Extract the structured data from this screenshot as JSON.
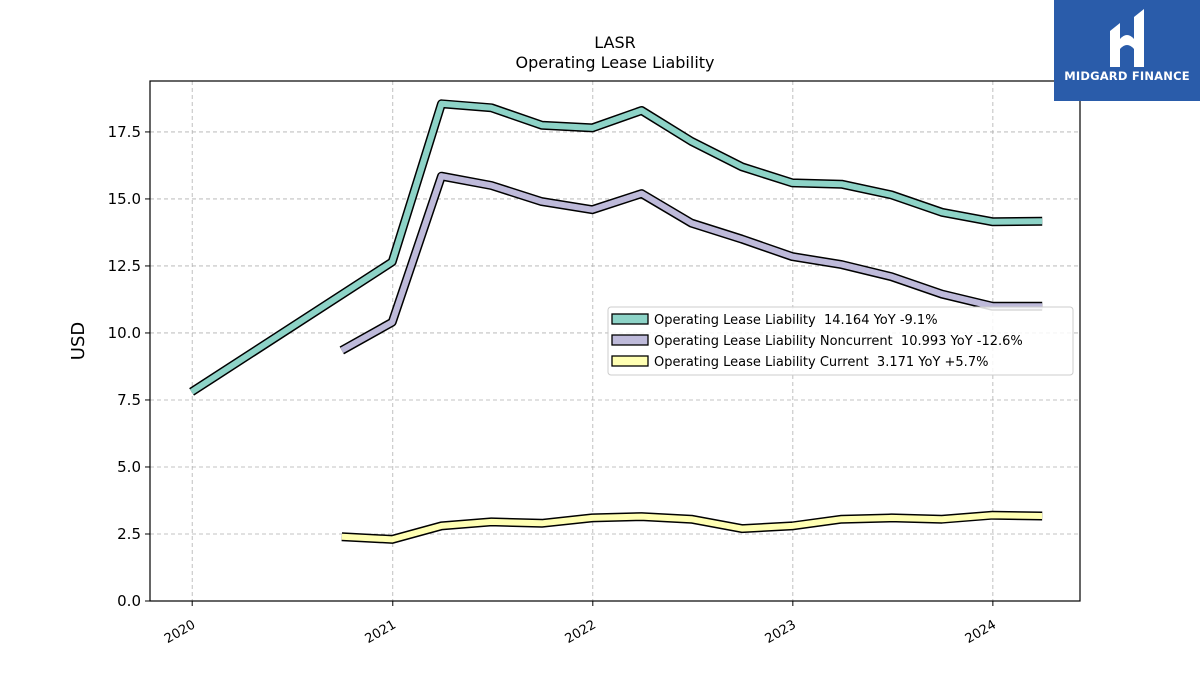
{
  "brand": {
    "name": "MIDGARD FINANCE",
    "color": "#2a5caa"
  },
  "chart_data": {
    "type": "line",
    "title": "LASR",
    "subtitle": "Operating Lease Liability",
    "ylabel": "USD",
    "xlabel": "",
    "ylim": [
      0,
      19.4
    ],
    "yticks": [
      0.0,
      2.5,
      5.0,
      7.5,
      10.0,
      12.5,
      15.0,
      17.5
    ],
    "ytick_labels": [
      "0.0",
      "2.5",
      "5.0",
      "7.5",
      "10.0",
      "12.5",
      "15.0",
      "17.5"
    ],
    "xlim": [
      "2019-10-16",
      "2024-06-08"
    ],
    "xticks": [
      "2020-01-01",
      "2021-01-01",
      "2022-01-01",
      "2023-01-01",
      "2024-01-01"
    ],
    "xtick_labels": [
      "2020",
      "2021",
      "2022",
      "2023",
      "2024"
    ],
    "grid": true,
    "legend_position": "center-right",
    "series": [
      {
        "name": "Operating Lease Liability",
        "legend_label": "Operating Lease Liability  14.164 YoY -9.1%",
        "color": "#8dd3c7",
        "x": [
          "2019-12-31",
          "2020-12-31",
          "2021-03-31",
          "2021-06-30",
          "2021-09-30",
          "2021-12-31",
          "2022-03-31",
          "2022-06-30",
          "2022-09-30",
          "2022-12-31",
          "2023-03-31",
          "2023-06-30",
          "2023-09-30",
          "2023-12-31",
          "2024-03-31"
        ],
        "y": [
          7.8,
          12.65,
          18.55,
          18.4,
          17.75,
          17.65,
          18.3,
          17.15,
          16.2,
          15.6,
          15.55,
          15.15,
          14.5,
          14.15,
          14.164
        ]
      },
      {
        "name": "Operating Lease Liability Noncurrent",
        "legend_label": "Operating Lease Liability Noncurrent  10.993 YoY -12.6%",
        "color": "#bebada",
        "x": [
          "2020-09-30",
          "2020-12-31",
          "2021-03-31",
          "2021-06-30",
          "2021-09-30",
          "2021-12-31",
          "2022-03-31",
          "2022-06-30",
          "2022-09-30",
          "2022-12-31",
          "2023-03-31",
          "2023-06-30",
          "2023-09-30",
          "2023-12-31",
          "2024-03-31"
        ],
        "y": [
          9.35,
          10.4,
          15.85,
          15.5,
          14.9,
          14.6,
          15.2,
          14.1,
          13.5,
          12.85,
          12.55,
          12.1,
          11.45,
          11.0,
          10.993
        ]
      },
      {
        "name": "Operating Lease Liability Current",
        "legend_label": "Operating Lease Liability Current  3.171 YoY +5.7%",
        "color": "#ffffb3",
        "x": [
          "2020-09-30",
          "2020-12-31",
          "2021-03-31",
          "2021-06-30",
          "2021-09-30",
          "2021-12-31",
          "2022-03-31",
          "2022-06-30",
          "2022-09-30",
          "2022-12-31",
          "2023-03-31",
          "2023-06-30",
          "2023-09-30",
          "2023-12-31",
          "2024-03-31"
        ],
        "y": [
          2.4,
          2.3,
          2.8,
          2.95,
          2.9,
          3.1,
          3.15,
          3.05,
          2.7,
          2.8,
          3.05,
          3.1,
          3.05,
          3.2,
          3.171
        ]
      }
    ]
  }
}
